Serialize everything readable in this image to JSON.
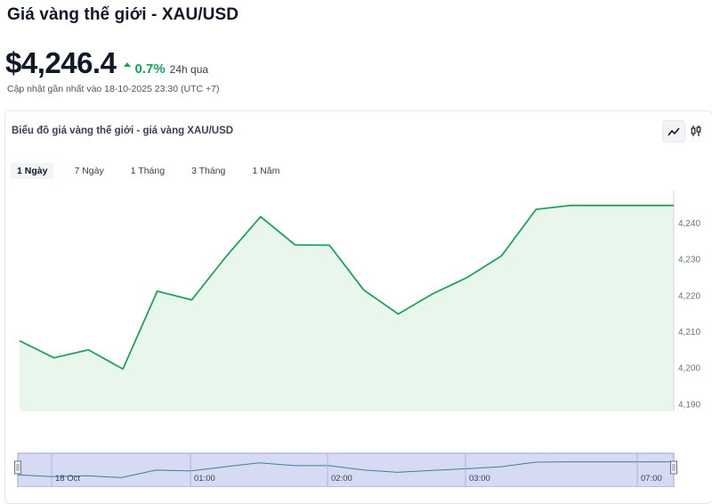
{
  "header": {
    "title": "Giá vàng thế giới - XAU/USD",
    "price": "$4,246.4",
    "change": "0.7%",
    "change_period": "24h qua",
    "updated": "Cập nhật gần nhất vào 18-10-2025 23:30 (UTC +7)"
  },
  "card": {
    "title": "Biểu đồ giá vàng thế giới - giá vàng XAU/USD",
    "tabs": [
      {
        "label": "1 Ngày",
        "active": true
      },
      {
        "label": "7 Ngày",
        "active": false
      },
      {
        "label": "1 Tháng",
        "active": false
      },
      {
        "label": "3 Tháng",
        "active": false
      },
      {
        "label": "1 Năm",
        "active": false
      }
    ],
    "chart_types": [
      {
        "icon": "line-chart-icon",
        "active": true
      },
      {
        "icon": "candlestick-icon",
        "active": false
      }
    ]
  },
  "colors": {
    "line": "#1fa35c",
    "area": "#e8f6ec",
    "up": "#10a35a",
    "navigator_mask": "#c9ceef"
  },
  "chart_data": {
    "type": "area",
    "title": "",
    "xlabel": "",
    "ylabel": "",
    "ylim": [
      4188,
      4249
    ],
    "y_ticks": [
      4190,
      4200,
      4210,
      4220,
      4230,
      4240
    ],
    "y_tick_labels": [
      "4,190",
      "4,200",
      "4,210",
      "4,220",
      "4,230",
      "4,240"
    ],
    "series": [
      {
        "values": [
          4207.5,
          4202.8,
          4205.0,
          4199.7,
          4221.2,
          4218.8,
          4230.8,
          4241.8,
          4234.0,
          4233.9,
          4221.5,
          4214.9,
          4220.5,
          4225.0,
          4231.0,
          4243.8,
          4244.9,
          4244.9,
          4244.9,
          4244.9
        ]
      }
    ],
    "navigator": {
      "labels": [
        "18 Oct",
        "01:00",
        "02:00",
        "03:00",
        "07:00"
      ]
    }
  }
}
